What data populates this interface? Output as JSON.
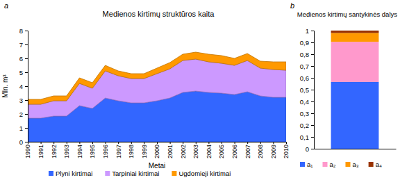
{
  "chart_data": [
    {
      "type": "area",
      "stacked": true,
      "title": "Medienos kirtimų struktūros kaita",
      "annotations": [
        "a"
      ],
      "x_label": "Metai",
      "y_label": "Mln. m³",
      "categories": [
        "1990",
        "1991",
        "1992",
        "1993",
        "1994",
        "1995",
        "1996",
        "1997",
        "1998",
        "1999",
        "2000",
        "2001",
        "2002",
        "2003",
        "2004",
        "2005",
        "2006",
        "2007",
        "2008",
        "2009",
        "2010"
      ],
      "series": [
        {
          "name": "Plyni kirtimai",
          "color": "#3366ff",
          "values": [
            1.7,
            1.7,
            1.85,
            1.85,
            2.6,
            2.4,
            3.15,
            2.95,
            2.8,
            2.8,
            2.95,
            3.15,
            3.55,
            3.65,
            3.55,
            3.5,
            3.4,
            3.6,
            3.3,
            3.2,
            3.2
          ]
        },
        {
          "name": "Tarpiniai kirtimai",
          "color": "#cc99ff",
          "values": [
            1.0,
            1.0,
            1.1,
            1.1,
            1.6,
            1.45,
            1.95,
            1.8,
            1.75,
            1.75,
            1.95,
            2.1,
            2.3,
            2.3,
            2.2,
            2.15,
            2.1,
            2.25,
            2.0,
            2.0,
            1.95
          ]
        },
        {
          "name": "Ugdomieji kirtimai",
          "color": "#ff9900",
          "values": [
            0.35,
            0.35,
            0.35,
            0.35,
            0.4,
            0.4,
            0.4,
            0.35,
            0.35,
            0.35,
            0.4,
            0.45,
            0.45,
            0.5,
            0.55,
            0.55,
            0.5,
            0.5,
            0.5,
            0.55,
            0.6
          ]
        }
      ],
      "ylim": [
        0,
        8
      ],
      "yticks": [
        0,
        1,
        2,
        3,
        4,
        5,
        6,
        7,
        8
      ],
      "grid": false,
      "legend": "bottom"
    },
    {
      "type": "bar",
      "stacked": true,
      "title": "Medienos kirtimų santykinės dalys",
      "annotations": [
        "b"
      ],
      "categories": [
        null
      ],
      "series": [
        {
          "name": "a₁",
          "color": "#3366ff",
          "values": [
            0.565
          ]
        },
        {
          "name": "a₂",
          "color": "#ff99cc",
          "values": [
            0.34
          ]
        },
        {
          "name": "a₃",
          "color": "#ff9900",
          "values": [
            0.075
          ]
        },
        {
          "name": "a₄",
          "color": "#993300",
          "values": [
            0.02
          ]
        }
      ],
      "ylim": [
        0,
        1
      ],
      "yticks": [
        0,
        {
          "value": 0.1,
          "label": "0,1"
        },
        {
          "value": 0.2,
          "label": "0,2"
        },
        {
          "value": 0.3,
          "label": "0,3"
        },
        {
          "value": 0.4,
          "label": "0,4"
        },
        {
          "value": 0.5,
          "label": "0,5"
        },
        {
          "value": 0.6,
          "label": "0,6"
        },
        {
          "value": 0.7,
          "label": "0,7"
        },
        {
          "value": 0.8,
          "label": "0,8"
        },
        {
          "value": 0.9,
          "label": "0,9"
        },
        1
      ],
      "grid": false,
      "legend": "bottom"
    }
  ]
}
